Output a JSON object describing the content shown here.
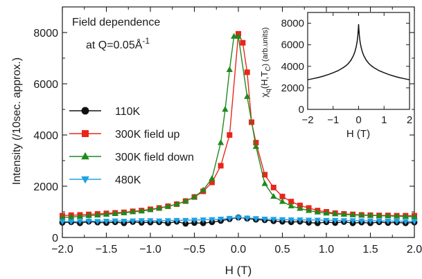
{
  "chart_data": [
    {
      "type": "line",
      "annotation_line1": "Field dependence",
      "annotation_line2_prefix": "at Q=0.05Å",
      "annotation_line2_sup": "-1",
      "xlabel": "H (T)",
      "ylabel": "Intensity (/10sec. approx.)",
      "xlim": [
        -2.0,
        2.0
      ],
      "ylim": [
        0,
        9000
      ],
      "x_ticks": [
        -2.0,
        -1.5,
        -1.0,
        -0.5,
        0.0,
        0.5,
        1.0,
        1.5,
        2.0
      ],
      "x_tick_labels": [
        "−2.0",
        "−1.5",
        "−1.0",
        "−0.5",
        "0.0",
        "0.5",
        "1.0",
        "1.5",
        "2.0"
      ],
      "y_ticks": [
        0,
        2000,
        4000,
        6000,
        8000
      ],
      "y_tick_labels": [
        "0",
        "2000",
        "4000",
        "6000",
        "8000"
      ],
      "grid": false,
      "legend_position": "left",
      "series": [
        {
          "name": "110K",
          "color": "#111111",
          "marker": "circle",
          "x": [
            -2.0,
            -1.9,
            -1.8,
            -1.7,
            -1.6,
            -1.5,
            -1.4,
            -1.3,
            -1.2,
            -1.1,
            -1.0,
            -0.9,
            -0.8,
            -0.7,
            -0.6,
            -0.5,
            -0.4,
            -0.3,
            -0.2,
            -0.1,
            0.0,
            0.1,
            0.2,
            0.3,
            0.4,
            0.5,
            0.6,
            0.7,
            0.8,
            0.9,
            1.0,
            1.1,
            1.2,
            1.3,
            1.4,
            1.5,
            1.6,
            1.7,
            1.8,
            1.9,
            2.0
          ],
          "y": [
            580,
            600,
            560,
            620,
            590,
            570,
            600,
            560,
            610,
            580,
            590,
            600,
            560,
            620,
            540,
            570,
            560,
            600,
            650,
            720,
            780,
            740,
            700,
            680,
            640,
            620,
            600,
            620,
            580,
            560,
            600,
            570,
            610,
            560,
            590,
            560,
            600,
            570,
            590,
            560,
            590
          ]
        },
        {
          "name": "300K field up",
          "color": "#e8261c",
          "marker": "square",
          "x": [
            -2.0,
            -1.9,
            -1.8,
            -1.7,
            -1.6,
            -1.5,
            -1.4,
            -1.3,
            -1.2,
            -1.1,
            -1.0,
            -0.9,
            -0.8,
            -0.7,
            -0.6,
            -0.5,
            -0.4,
            -0.3,
            -0.2,
            -0.1,
            0.0,
            0.05,
            0.1,
            0.15,
            0.2,
            0.3,
            0.4,
            0.5,
            0.6,
            0.7,
            0.8,
            0.9,
            1.0,
            1.1,
            1.2,
            1.3,
            1.4,
            1.5,
            1.6,
            1.7,
            1.8,
            1.9,
            2.0
          ],
          "y": [
            850,
            870,
            880,
            900,
            920,
            940,
            960,
            980,
            1020,
            1050,
            1100,
            1150,
            1220,
            1300,
            1420,
            1580,
            1800,
            2150,
            2800,
            4000,
            7950,
            7600,
            6450,
            4500,
            3700,
            2450,
            1950,
            1600,
            1400,
            1250,
            1150,
            1050,
            1000,
            950,
            920,
            900,
            880,
            870,
            860,
            860,
            850,
            850,
            850
          ]
        },
        {
          "name": "300K field down",
          "color": "#1e8a1e",
          "marker": "triangle-up",
          "x": [
            -2.0,
            -1.9,
            -1.8,
            -1.7,
            -1.6,
            -1.5,
            -1.4,
            -1.3,
            -1.2,
            -1.1,
            -1.0,
            -0.9,
            -0.8,
            -0.7,
            -0.6,
            -0.5,
            -0.4,
            -0.3,
            -0.2,
            -0.15,
            -0.1,
            -0.05,
            0.0,
            0.1,
            0.2,
            0.3,
            0.4,
            0.5,
            0.6,
            0.7,
            0.8,
            0.9,
            1.0,
            1.1,
            1.2,
            1.3,
            1.4,
            1.5,
            1.6,
            1.7,
            1.8,
            1.9,
            2.0
          ],
          "y": [
            780,
            800,
            820,
            850,
            870,
            900,
            930,
            960,
            1000,
            1030,
            1080,
            1140,
            1210,
            1300,
            1420,
            1580,
            1850,
            2300,
            3700,
            5000,
            6550,
            7850,
            7850,
            5500,
            3550,
            2100,
            1600,
            1400,
            1230,
            1130,
            1050,
            990,
            950,
            920,
            900,
            880,
            870,
            860,
            850,
            840,
            830,
            820,
            810
          ]
        },
        {
          "name": "480K",
          "color": "#1ea0e6",
          "marker": "triangle-down",
          "x": [
            -2.0,
            -1.9,
            -1.8,
            -1.7,
            -1.6,
            -1.5,
            -1.4,
            -1.3,
            -1.2,
            -1.1,
            -1.0,
            -0.9,
            -0.8,
            -0.7,
            -0.6,
            -0.5,
            -0.4,
            -0.3,
            -0.2,
            -0.1,
            0.0,
            0.1,
            0.2,
            0.3,
            0.4,
            0.5,
            0.6,
            0.7,
            0.8,
            0.9,
            1.0,
            1.1,
            1.2,
            1.3,
            1.4,
            1.5,
            1.6,
            1.7,
            1.8,
            1.9,
            2.0
          ],
          "y": [
            620,
            620,
            630,
            640,
            630,
            640,
            650,
            640,
            650,
            660,
            660,
            650,
            660,
            670,
            670,
            680,
            690,
            700,
            720,
            750,
            780,
            760,
            740,
            720,
            710,
            700,
            690,
            690,
            680,
            680,
            670,
            670,
            660,
            660,
            650,
            650,
            650,
            640,
            640,
            630,
            630
          ]
        }
      ]
    },
    {
      "type": "line",
      "inset": true,
      "xlabel": "H (T)",
      "ylabel_main": "χ",
      "ylabel_sub": "q",
      "ylabel_paren": "(H,T",
      "ylabel_paren_sub": "C",
      "ylabel_tail": ") (arb.units)",
      "xlim": [
        -2,
        2
      ],
      "ylim": [
        0,
        9000
      ],
      "x_ticks": [
        -2,
        -1,
        0,
        1,
        2
      ],
      "x_tick_labels": [
        "−2",
        "−1",
        "0",
        "1",
        "2"
      ],
      "y_ticks": [
        0,
        2000,
        4000,
        6000,
        8000
      ],
      "y_tick_labels": [
        "0",
        "2000",
        "4000",
        "6000",
        "8000"
      ],
      "series": [
        {
          "color": "#111111",
          "x": [
            -2.0,
            -1.8,
            -1.6,
            -1.4,
            -1.2,
            -1.0,
            -0.8,
            -0.6,
            -0.5,
            -0.4,
            -0.3,
            -0.2,
            -0.15,
            -0.1,
            -0.06,
            -0.03,
            -0.01,
            0.0,
            0.01,
            0.03,
            0.06,
            0.1,
            0.15,
            0.2,
            0.3,
            0.4,
            0.5,
            0.6,
            0.8,
            1.0,
            1.2,
            1.4,
            1.6,
            1.8,
            2.0
          ],
          "y": [
            2750,
            2850,
            2950,
            3080,
            3230,
            3400,
            3600,
            3880,
            4050,
            4270,
            4570,
            5000,
            5320,
            5750,
            6250,
            6850,
            7450,
            7900,
            7450,
            6850,
            6250,
            5750,
            5320,
            5000,
            4570,
            4270,
            4050,
            3880,
            3600,
            3400,
            3230,
            3080,
            2950,
            2850,
            2750
          ]
        }
      ]
    }
  ]
}
